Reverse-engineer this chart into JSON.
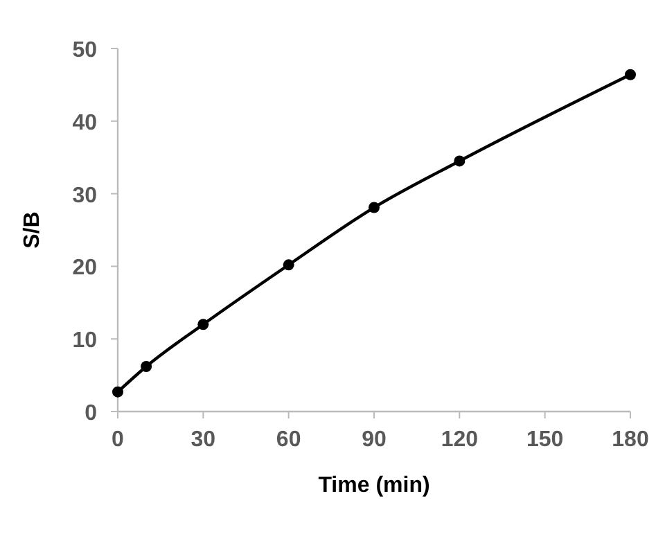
{
  "chart_data": {
    "type": "line",
    "xlabel": "Time (min)",
    "ylabel": "S/B",
    "x": [
      0,
      10,
      30,
      60,
      90,
      120,
      180
    ],
    "series": [
      {
        "color": "#000000",
        "values": [
          2.7,
          6.2,
          12.0,
          20.2,
          28.1,
          34.5,
          46.4
        ]
      }
    ],
    "xlim": [
      0,
      180
    ],
    "xticks": [
      0,
      30,
      60,
      90,
      120,
      150,
      180
    ],
    "ylim": [
      0,
      50
    ],
    "yticks": [
      0,
      10,
      20,
      30,
      40,
      50
    ],
    "grid": false,
    "marker": "circle",
    "line_style": "solid"
  }
}
